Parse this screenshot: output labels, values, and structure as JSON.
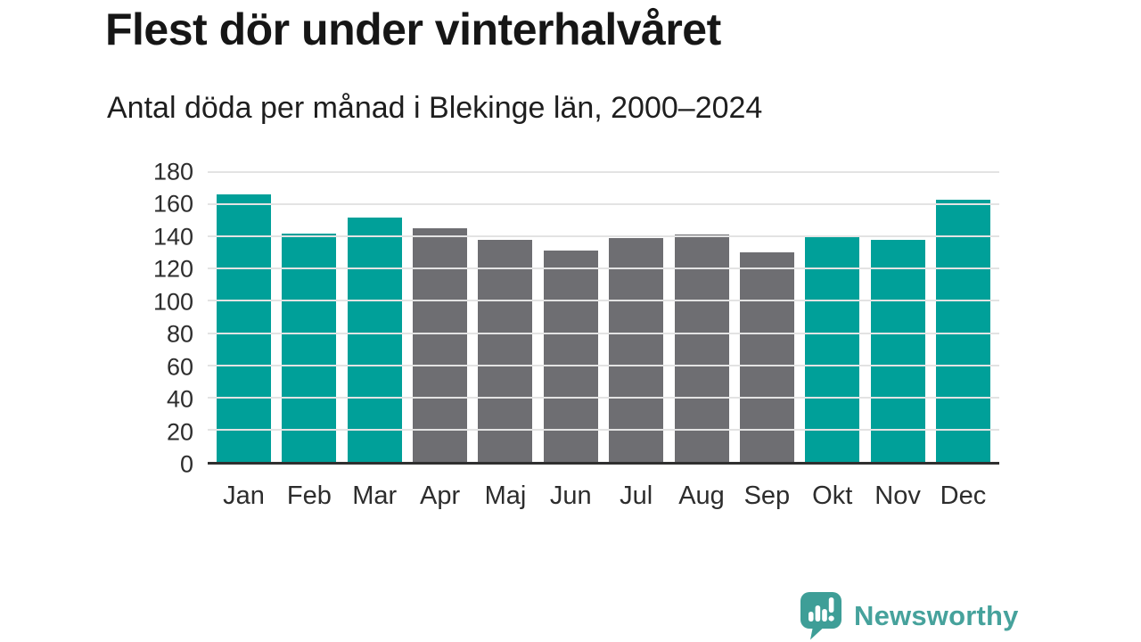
{
  "header": {
    "title": "Flest dör under vinterhalvåret",
    "subtitle": "Antal döda per månad i Blekinge län, 2000–2024"
  },
  "branding": {
    "name": "Newsworthy",
    "icon": "newsworthy-bar-chart-speech-bubble-icon",
    "text_color": "#46a29c",
    "icon_color": "#3e9e97"
  },
  "chart_data": {
    "type": "bar",
    "title": "Flest dör under vinterhalvåret",
    "subtitle": "Antal döda per månad i Blekinge län, 2000–2024",
    "categories": [
      "Jan",
      "Feb",
      "Mar",
      "Apr",
      "Maj",
      "Jun",
      "Jul",
      "Aug",
      "Sep",
      "Okt",
      "Nov",
      "Dec"
    ],
    "values": [
      166,
      142,
      152,
      145,
      138,
      131,
      139,
      141,
      130,
      140,
      138,
      163
    ],
    "bar_groups": [
      "winter",
      "winter",
      "winter",
      "summer",
      "summer",
      "summer",
      "summer",
      "summer",
      "summer",
      "winter",
      "winter",
      "winter"
    ],
    "palette": {
      "winter": "#00a099",
      "summer": "#6e6e72"
    },
    "grid_color": "#e3e3e3",
    "axis_color": "#2f2f2f",
    "ylim": [
      0,
      180
    ],
    "yticks": [
      0,
      20,
      40,
      60,
      80,
      100,
      120,
      140,
      160,
      180
    ],
    "xlabel": "",
    "ylabel": "",
    "grid": true,
    "legend": false
  }
}
